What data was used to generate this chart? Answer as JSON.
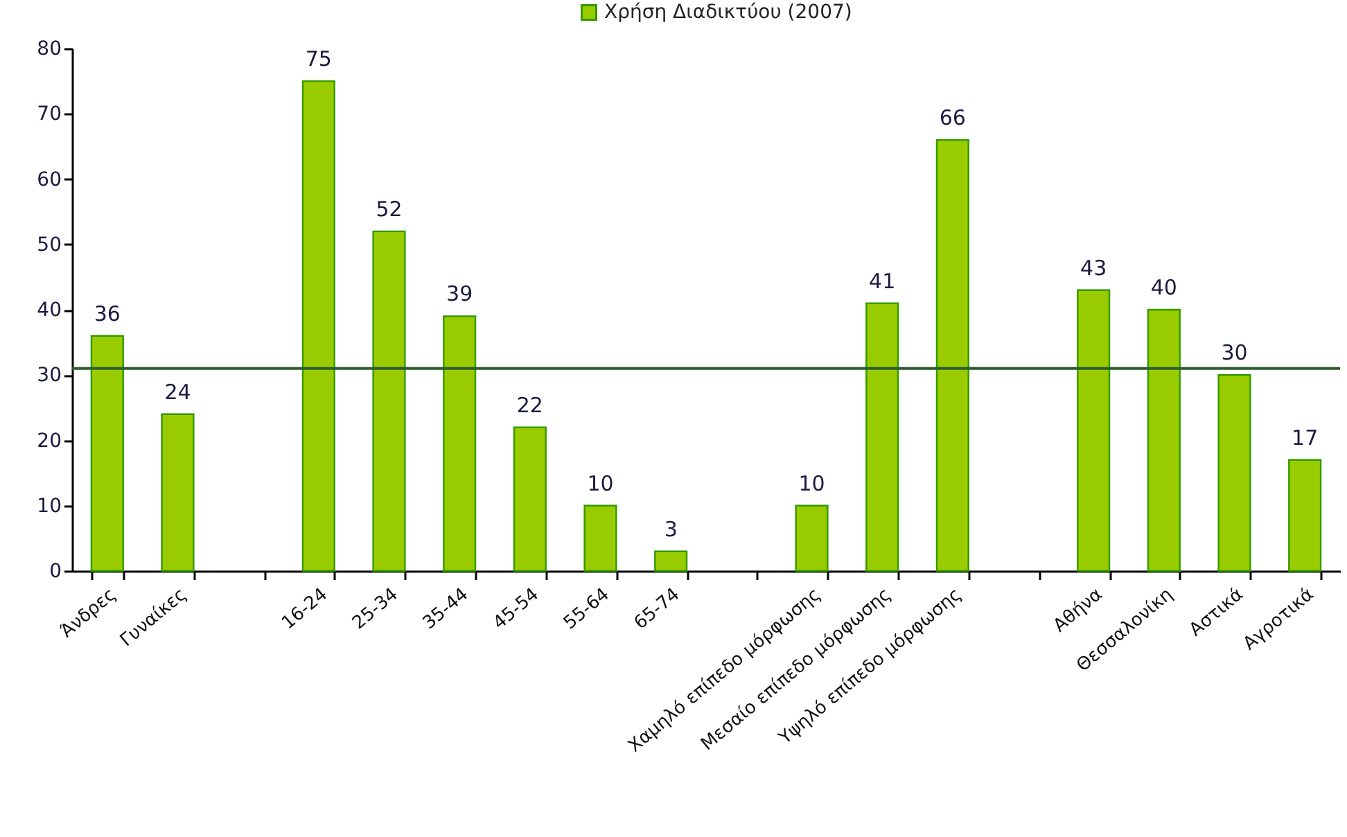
{
  "chart_data": {
    "type": "bar",
    "categories": [
      "Άνδρες",
      "Γυναίκες",
      null,
      "16-24",
      "25-34",
      "35-44",
      "45-54",
      "55-64",
      "65-74",
      null,
      "Χαμηλό επίπεδο μόρφωσης",
      "Μεσαίο επίπεδο μόρφωσης",
      "Υψηλό επίπεδο μόρφωσης",
      null,
      "Αθήνα",
      "Θεσσαλονίκη",
      "Αστικά",
      "Αγροτικά"
    ],
    "series": [
      {
        "name": "Χρήση Διαδικτύου (2007)",
        "color": "#99cc00",
        "values": [
          36,
          24,
          null,
          75,
          52,
          39,
          22,
          10,
          3,
          null,
          10,
          41,
          66,
          null,
          43,
          40,
          30,
          17
        ]
      }
    ],
    "ylim": [
      0,
      80
    ],
    "yticks": [
      0,
      10,
      20,
      30,
      40,
      50,
      60,
      70,
      80
    ],
    "legend": "top",
    "data_labels": true,
    "ref_lines": [
      {
        "axis": "y",
        "value": 31,
        "color": "#2e5e2e"
      }
    ]
  }
}
